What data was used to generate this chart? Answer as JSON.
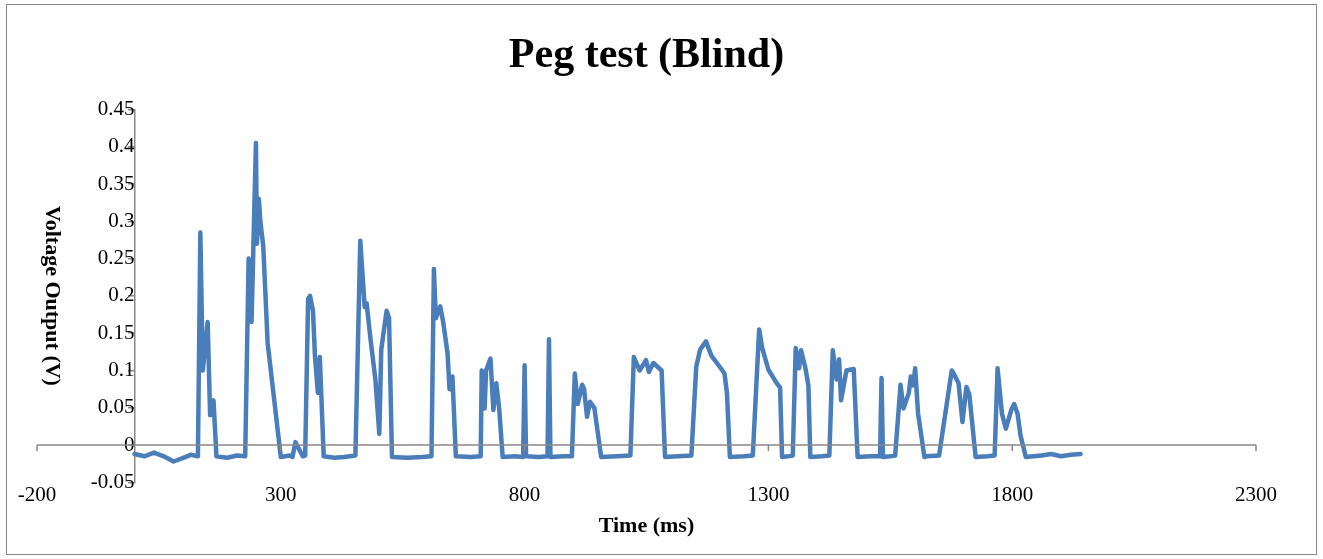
{
  "chart_data": {
    "type": "line",
    "title": "Peg test (Blind)",
    "xlabel": "Time (ms)",
    "ylabel": "Voltage Output (V)",
    "xlim": [
      -200,
      2300
    ],
    "xticks": [
      -200,
      300,
      800,
      1300,
      1800,
      2300
    ],
    "ylim": [
      -0.05,
      0.45
    ],
    "yticks": [
      -0.05,
      0,
      0.05,
      0.1,
      0.15,
      0.2,
      0.25,
      0.3,
      0.35,
      0.4,
      0.45
    ],
    "grid": false,
    "legend": false,
    "marker": "none",
    "line_style": "solid",
    "series": [
      {
        "color": "#4a7ebb",
        "x": [
          0,
          20,
          40,
          60,
          80,
          100,
          115,
          130,
          135,
          140,
          150,
          155,
          162,
          168,
          190,
          210,
          227,
          234,
          240,
          249,
          251,
          255,
          258,
          264,
          273,
          300,
          318,
          324,
          330,
          345,
          350,
          356,
          360,
          366,
          370,
          376,
          380,
          388,
          410,
          430,
          453,
          463,
          472,
          476,
          484,
          494,
          502,
          506,
          517,
          522,
          528,
          560,
          590,
          609,
          614,
          618,
          627,
          633,
          642,
          646,
          652,
          659,
          690,
          710,
          712,
          718,
          721,
          730,
          736,
          742,
          748,
          755,
          780,
          797,
          800,
          803,
          830,
          847,
          850,
          853,
          880,
          897,
          903,
          909,
          918,
          922,
          928,
          934,
          943,
          957,
          990,
          1017,
          1024,
          1036,
          1049,
          1055,
          1064,
          1081,
          1088,
          1115,
          1142,
          1152,
          1160,
          1172,
          1183,
          1200,
          1210,
          1215,
          1221,
          1250,
          1268,
          1281,
          1287,
          1300,
          1317,
          1324,
          1328,
          1340,
          1350,
          1356,
          1363,
          1367,
          1376,
          1382,
          1386,
          1410,
          1425,
          1432,
          1440,
          1445,
          1449,
          1460,
          1475,
          1483,
          1510,
          1529,
          1532,
          1535,
          1550,
          1560,
          1571,
          1577,
          1588,
          1592,
          1597,
          1601,
          1607,
          1620,
          1624,
          1650,
          1676,
          1680,
          1690,
          1698,
          1706,
          1712,
          1725,
          1750,
          1764,
          1770,
          1779,
          1787,
          1798,
          1804,
          1811,
          1817,
          1828,
          1860,
          1880,
          1900,
          1920,
          1940
        ],
        "values": [
          -0.012,
          -0.015,
          -0.01,
          -0.015,
          -0.022,
          -0.017,
          -0.013,
          -0.015,
          0.285,
          0.1,
          0.165,
          0.04,
          0.06,
          -0.015,
          -0.017,
          -0.014,
          -0.015,
          0.25,
          0.165,
          0.405,
          0.27,
          0.33,
          0.3,
          0.267,
          0.137,
          -0.016,
          -0.014,
          -0.016,
          0.004,
          -0.015,
          -0.014,
          0.196,
          0.2,
          0.18,
          0.12,
          0.07,
          0.118,
          -0.015,
          -0.017,
          -0.016,
          -0.014,
          0.274,
          0.185,
          0.19,
          0.142,
          0.088,
          0.015,
          0.128,
          0.18,
          0.17,
          -0.016,
          -0.017,
          -0.016,
          -0.015,
          0.236,
          0.17,
          0.186,
          0.165,
          0.123,
          0.075,
          0.092,
          -0.015,
          -0.016,
          -0.015,
          0.1,
          0.049,
          0.1,
          0.116,
          0.047,
          0.083,
          0.048,
          -0.016,
          -0.015,
          -0.016,
          0.107,
          -0.015,
          -0.016,
          -0.015,
          0.142,
          -0.016,
          -0.015,
          -0.015,
          0.096,
          0.055,
          0.081,
          0.075,
          0.038,
          0.058,
          0.05,
          -0.016,
          -0.015,
          -0.014,
          0.118,
          0.1,
          0.114,
          0.098,
          0.11,
          0.1,
          -0.016,
          -0.015,
          -0.014,
          0.105,
          0.128,
          0.139,
          0.12,
          0.105,
          0.096,
          0.07,
          -0.016,
          -0.015,
          -0.014,
          0.155,
          0.131,
          0.101,
          0.083,
          0.077,
          -0.016,
          -0.015,
          -0.014,
          0.13,
          0.103,
          0.127,
          0.103,
          0.08,
          -0.016,
          -0.015,
          -0.014,
          0.127,
          0.088,
          0.115,
          0.06,
          0.1,
          0.102,
          -0.016,
          -0.015,
          -0.015,
          0.09,
          -0.016,
          -0.015,
          -0.014,
          0.081,
          0.049,
          0.07,
          0.092,
          0.08,
          0.103,
          0.042,
          -0.016,
          -0.015,
          -0.014,
          0.1,
          0.096,
          0.083,
          0.031,
          0.078,
          0.068,
          -0.016,
          -0.015,
          -0.014,
          0.103,
          0.042,
          0.022,
          0.047,
          0.055,
          0.042,
          0.013,
          -0.016,
          -0.014,
          -0.012,
          -0.015,
          -0.013,
          -0.012
        ]
      }
    ]
  }
}
